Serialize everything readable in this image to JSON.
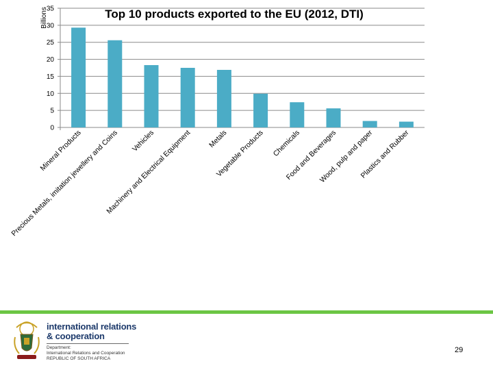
{
  "chart_data": {
    "type": "bar",
    "title": "Top 10 products exported to the EU (2012, DTI)",
    "xlabel": "",
    "ylabel": "Billions",
    "ylim": [
      0,
      35
    ],
    "yticks": [
      0,
      5,
      10,
      15,
      20,
      25,
      30,
      35
    ],
    "grid": true,
    "bar_color": "#4bacc6",
    "categories": [
      "Mineral Products",
      "Precious Metals, imitation jewellery and Coins",
      "Vehicles",
      "Machinery and Electrical Equipment",
      "Metals",
      "Vegetable Products",
      "Chemicals",
      "Food and Beverages",
      "Wood, pulp and paper",
      "Plastics and Rubber"
    ],
    "values": [
      29.3,
      25.6,
      18.3,
      17.5,
      16.9,
      9.9,
      7.4,
      5.6,
      1.9,
      1.7
    ]
  },
  "footer": {
    "org_line1": "international relations",
    "org_line2": "& cooperation",
    "dept_line1": "Department:",
    "dept_line2": "International Relations and Cooperation",
    "dept_line3": "REPUBLIC OF SOUTH AFRICA",
    "page_number": "29"
  },
  "colors": {
    "accent_green": "#6cc644",
    "brand_blue": "#1d3a6b"
  }
}
